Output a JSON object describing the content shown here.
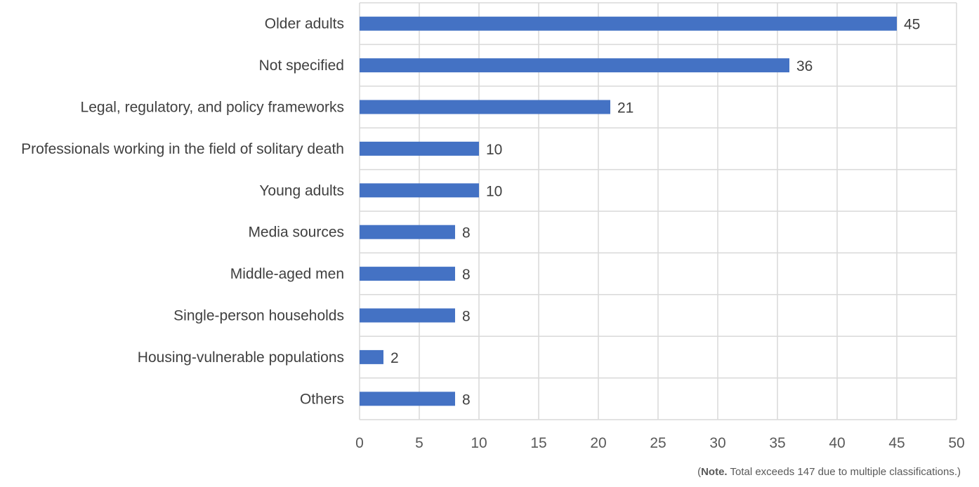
{
  "chart_data": {
    "type": "bar",
    "orientation": "horizontal",
    "categories": [
      "Older adults",
      "Not specified",
      "Legal, regulatory, and policy frameworks",
      "Professionals working in the field of solitary death",
      "Young adults",
      "Media sources",
      "Middle-aged men",
      "Single-person households",
      "Housing-vulnerable populations",
      "Others"
    ],
    "values": [
      45,
      36,
      21,
      10,
      10,
      8,
      8,
      8,
      2,
      8
    ],
    "xlim": [
      0,
      50
    ],
    "xticks": [
      0,
      5,
      10,
      15,
      20,
      25,
      30,
      35,
      40,
      45,
      50
    ],
    "grid": true,
    "legend": "none",
    "bar_color": "#4472C4",
    "grid_color": "#D9D9D9"
  },
  "note": {
    "open": "(",
    "bold": "Note.",
    "text": " Total exceeds 147 due to multiple classifications.)"
  }
}
